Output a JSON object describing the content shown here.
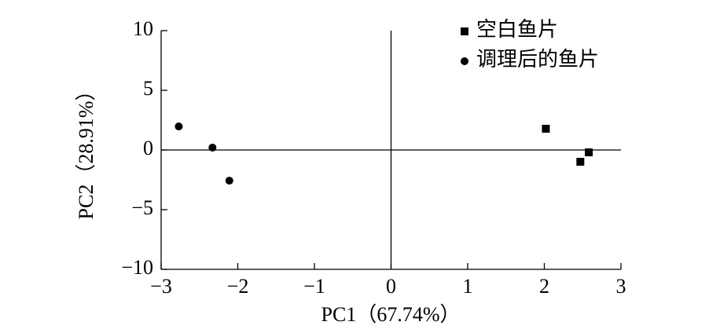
{
  "chart_data": {
    "type": "scatter",
    "x_label": "PC1（67.74%）",
    "y_label": "PC2（28.91%）",
    "xlim": [
      -3,
      3
    ],
    "ylim": [
      -10,
      10
    ],
    "xticks": [
      {
        "value": -3,
        "label": "−3"
      },
      {
        "value": -2,
        "label": "−2"
      },
      {
        "value": -1,
        "label": "−1"
      },
      0,
      1,
      2,
      3
    ],
    "yticks": [
      {
        "value": -10,
        "label": "−10"
      },
      {
        "value": -5,
        "label": "−5"
      },
      0,
      5,
      10
    ],
    "zero_lines": true,
    "legend": "top-right",
    "series": [
      {
        "name": "空白鱼片",
        "color": "#000000",
        "marker": "square",
        "x": [
          2.02,
          2.58,
          2.47
        ],
        "values": [
          1.78,
          -0.2,
          -0.99
        ]
      },
      {
        "name": "调理后的鱼片",
        "color": "#000000",
        "marker": "circle",
        "x": [
          -2.77,
          -2.33,
          -2.11
        ],
        "values": [
          1.97,
          0.2,
          -2.57
        ]
      }
    ]
  }
}
